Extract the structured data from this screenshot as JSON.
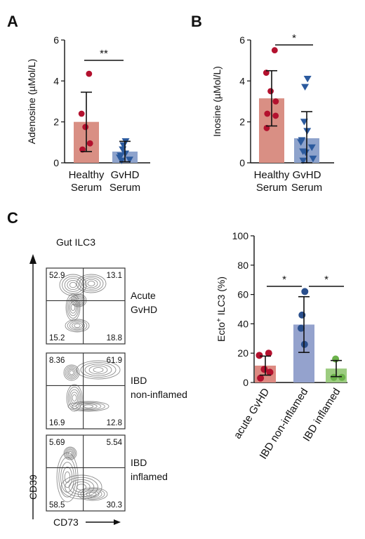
{
  "panels": {
    "A": "A",
    "B": "B",
    "C": "C"
  },
  "colors": {
    "healthy_bar": "#d98f84",
    "healthy_dot": "#b3112e",
    "gvhd_bar": "#8ea3cc",
    "gvhd_dot": "#2b5a9e",
    "acute_bar": "#dd8a82",
    "acute_dot": "#b3112e",
    "ibdni_bar": "#94a2cd",
    "ibdni_dot": "#2a4f8c",
    "ibdi_bar": "#9ccc80",
    "ibdi_dot": "#6bb24a"
  },
  "chart_data": [
    {
      "type": "bar",
      "panel": "A",
      "ylabel": "Adenosine (µMol/L)",
      "ylim": [
        0,
        6
      ],
      "yticks": [
        0,
        2,
        4,
        6
      ],
      "categories": [
        "Healthy Serum",
        "GvHD Serum"
      ],
      "category_lines": [
        [
          "Healthy",
          "Serum"
        ],
        [
          "GvHD",
          "Serum"
        ]
      ],
      "values": [
        2.0,
        0.55
      ],
      "error": [
        1.45,
        0.5
      ],
      "points": [
        [
          4.35,
          2.4,
          1.75,
          0.95,
          0.65
        ],
        [
          1.05,
          0.85,
          0.65,
          0.45,
          0.35,
          0.25,
          0.15,
          0.1
        ]
      ],
      "significance": "**"
    },
    {
      "type": "bar",
      "panel": "B",
      "ylabel": "Inosine (µMol/L)",
      "ylim": [
        0,
        6
      ],
      "yticks": [
        0,
        2,
        4,
        6
      ],
      "categories": [
        "Healthy Serum",
        "GvHD Serum"
      ],
      "category_lines": [
        [
          "Healthy",
          "Serum"
        ],
        [
          "GvHD",
          "Serum"
        ]
      ],
      "values": [
        3.15,
        1.2
      ],
      "error": [
        1.35,
        1.3
      ],
      "points": [
        [
          5.5,
          4.4,
          3.5,
          3.0,
          2.4,
          2.3,
          1.7
        ],
        [
          4.1,
          3.7,
          2.0,
          1.55,
          1.1,
          1.0,
          0.75,
          0.55,
          0.5,
          0.2,
          0.1
        ]
      ],
      "significance": "*"
    },
    {
      "type": "bar",
      "panel": "C",
      "ylabel": "Ecto+ ILC3 (%)",
      "ylabel_main": "Ecto",
      "ylabel_sup": "+",
      "ylabel_rest": " ILC3 (%)",
      "ylim": [
        0,
        100
      ],
      "yticks": [
        0,
        20,
        40,
        60,
        80,
        100
      ],
      "categories": [
        "acute GvHD",
        "IBD non-inflamed",
        "IBD inflamed"
      ],
      "values": [
        11.5,
        39.5,
        9.5
      ],
      "error": [
        6.5,
        19.0,
        5.5
      ],
      "points": [
        [
          20,
          18.5,
          9,
          7,
          3
        ],
        [
          62,
          46,
          37,
          26
        ],
        [
          16,
          3.5,
          3.5
        ]
      ],
      "significance": [
        "*",
        "*"
      ]
    }
  ],
  "flow": {
    "title": "Gut ILC3",
    "x_axis": "CD73",
    "y_axis": "CD39",
    "plots": [
      {
        "quadrants": [
          "52.9",
          "13.1",
          "15.2",
          "18.8"
        ],
        "label": [
          "Acute",
          "GvHD"
        ]
      },
      {
        "quadrants": [
          "8.36",
          "61.9",
          "16.9",
          "12.8"
        ],
        "label": [
          "IBD",
          "non-inflamed"
        ]
      },
      {
        "quadrants": [
          "5.69",
          "5.54",
          "58.5",
          "30.3"
        ],
        "label": [
          "IBD",
          "inflamed"
        ]
      }
    ]
  }
}
